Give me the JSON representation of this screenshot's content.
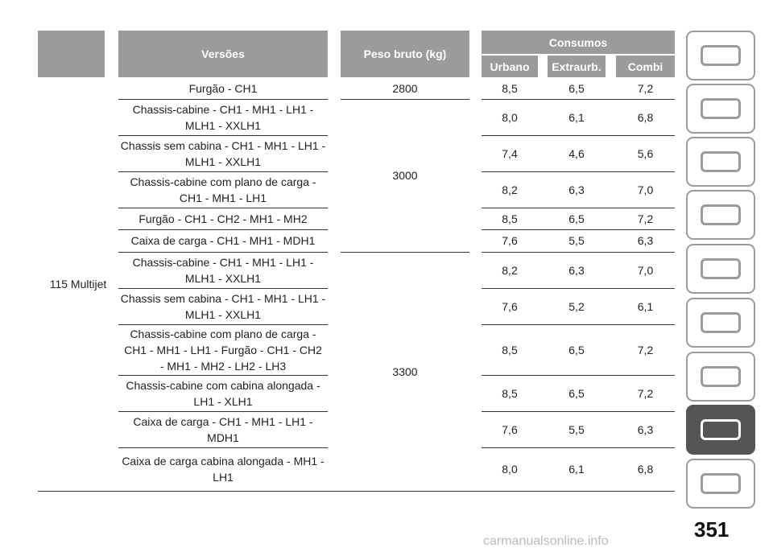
{
  "table": {
    "header": {
      "versions": "Versões",
      "weight": "Peso bruto (kg)",
      "consumption": "Consumos",
      "sub": [
        "Urbano",
        "Extraurb.",
        "Combi"
      ]
    },
    "engine": "115 Multijet",
    "weights": [
      "2800",
      "3000",
      "3300"
    ],
    "rows": [
      {
        "version": [
          "Furgão - CH1"
        ],
        "values": [
          "8,5",
          "6,5",
          "7,2"
        ]
      },
      {
        "version": [
          "Chassis-cabine - CH1 - MH1 - LH1 -",
          "MLH1 - XXLH1"
        ],
        "values": [
          "8,0",
          "6,1",
          "6,8"
        ]
      },
      {
        "version": [
          "Chassis sem cabina - CH1 - MH1 - LH1 -",
          "MLH1 - XXLH1"
        ],
        "values": [
          "7,4",
          "4,6",
          "5,6"
        ]
      },
      {
        "version": [
          "Chassis-cabine com plano de carga -",
          "CH1 - MH1 - LH1"
        ],
        "values": [
          "8,2",
          "6,3",
          "7,0"
        ]
      },
      {
        "version": [
          "Furgão - CH1 - CH2 - MH1 - MH2"
        ],
        "values": [
          "8,5",
          "6,5",
          "7,2"
        ]
      },
      {
        "version": [
          "Caixa de carga - CH1 - MH1 - MDH1"
        ],
        "values": [
          "7,6",
          "5,5",
          "6,3"
        ]
      },
      {
        "version": [
          "Chassis-cabine - CH1 - MH1 - LH1 -",
          "MLH1 - XXLH1"
        ],
        "values": [
          "8,2",
          "6,3",
          "7,0"
        ]
      },
      {
        "version": [
          "Chassis sem cabina - CH1 - MH1 - LH1 -",
          "MLH1 - XXLH1"
        ],
        "values": [
          "7,6",
          "5,2",
          "6,1"
        ]
      },
      {
        "version": [
          "Chassis-cabine com plano de carga -",
          "CH1 - MH1 - LH1 - Furgão - CH1 - CH2",
          "- MH1 - MH2 - LH2 - LH3"
        ],
        "values": [
          "8,5",
          "6,5",
          "7,2"
        ]
      },
      {
        "version": [
          "Chassis-cabine com cabina alongada -",
          "LH1 - XLH1"
        ],
        "values": [
          "8,5",
          "6,5",
          "7,2"
        ]
      },
      {
        "version": [
          "Caixa de carga - CH1 - MH1 - LH1 -",
          "MDH1"
        ],
        "values": [
          "7,6",
          "5,5",
          "6,3"
        ]
      },
      {
        "version": [
          "Caixa de carga cabina alongada - MH1 -",
          "LH1"
        ],
        "values": [
          "8,0",
          "6,1",
          "6,8"
        ]
      }
    ]
  },
  "page_number": "351",
  "watermark": "carmanualsonline.info"
}
